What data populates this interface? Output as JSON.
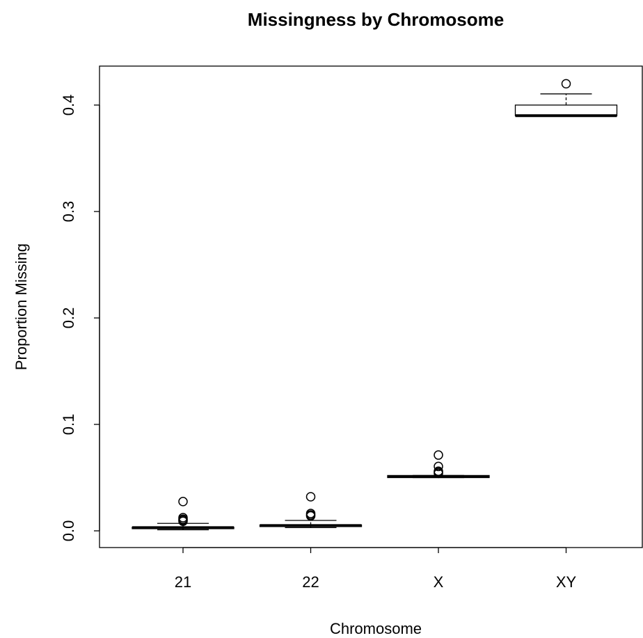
{
  "chart_data": {
    "type": "box",
    "title": "Missingness by Chromosome",
    "x_label": "Chromosome",
    "y_label": "Proportion Missing",
    "categories": [
      "21",
      "22",
      "X",
      "XY"
    ],
    "boxes": [
      {
        "min": 0.001,
        "q1": 0.002,
        "median": 0.003,
        "q3": 0.0035,
        "max": 0.007,
        "outliers": [
          0.0275,
          0.0124,
          0.011,
          0.01,
          0.009
        ]
      },
      {
        "min": 0.003,
        "q1": 0.004,
        "median": 0.005,
        "q3": 0.0055,
        "max": 0.0098,
        "outliers": [
          0.032,
          0.0163,
          0.015,
          0.014
        ]
      },
      {
        "min": 0.05,
        "q1": 0.05,
        "median": 0.051,
        "q3": 0.052,
        "max": 0.052,
        "outliers": [
          0.0712,
          0.0605,
          0.056,
          0.055,
          0.054
        ]
      },
      {
        "min": 0.39,
        "q1": 0.39,
        "median": 0.39,
        "q3": 0.4,
        "max": 0.4105,
        "outliers": [
          0.42
        ]
      }
    ],
    "color": "#000000",
    "ylim": [
      -0.0157,
      0.4366
    ],
    "yticks": [
      {
        "value": 0,
        "label": "0.0"
      },
      0.1,
      0.2,
      0.3,
      0.4
    ]
  }
}
